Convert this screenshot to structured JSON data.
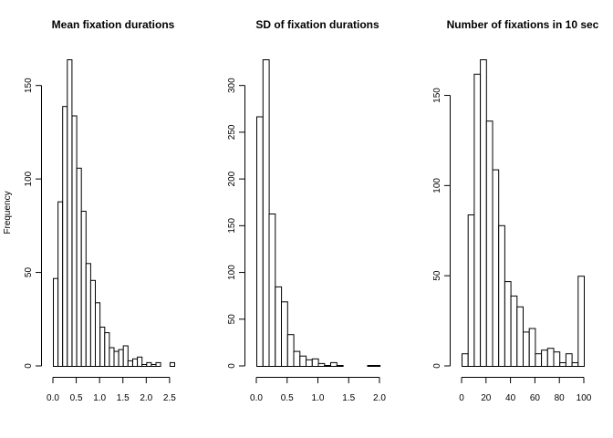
{
  "chart_data": [
    {
      "type": "bar",
      "title": "Mean fixation durations",
      "ylabel": "Frequency",
      "xlabel": "",
      "bin_width": 0.1,
      "bin_start": 0.0,
      "values": [
        47,
        88,
        139,
        164,
        134,
        106,
        83,
        55,
        46,
        34,
        21,
        18,
        10,
        8,
        9,
        11,
        3,
        4,
        5,
        1,
        2,
        1,
        2,
        0,
        0,
        2
      ],
      "xlim": [
        0,
        2.6
      ],
      "ylim": [
        0,
        164
      ],
      "xticks": [
        0.0,
        0.5,
        1.0,
        1.5,
        2.0,
        2.5
      ],
      "xtick_labels": [
        "0.0",
        "0.5",
        "1.0",
        "1.5",
        "2.0",
        "2.5"
      ],
      "yticks": [
        0,
        50,
        100,
        150
      ],
      "ytick_labels": [
        "0",
        "50",
        "100",
        "150"
      ]
    },
    {
      "type": "bar",
      "title": "SD of fixation durations",
      "ylabel": "",
      "xlabel": "",
      "bin_width": 0.1,
      "bin_start": 0.0,
      "values": [
        267,
        328,
        163,
        85,
        69,
        34,
        16,
        11,
        7,
        8,
        3,
        1,
        4,
        1,
        0,
        0,
        0,
        0,
        1,
        1
      ],
      "xlim": [
        0,
        2.0
      ],
      "ylim": [
        0,
        328
      ],
      "xticks": [
        0.0,
        0.5,
        1.0,
        1.5,
        2.0
      ],
      "xtick_labels": [
        "0.0",
        "0.5",
        "1.0",
        "1.5",
        "2.0"
      ],
      "yticks": [
        0,
        50,
        100,
        150,
        200,
        250,
        300
      ],
      "ytick_labels": [
        "0",
        "50",
        "100",
        "150",
        "200",
        "250",
        "300"
      ]
    },
    {
      "type": "bar",
      "title": "Number of fixations in 10 sec",
      "ylabel": "",
      "xlabel": "",
      "bin_width": 5,
      "bin_start": 0,
      "values": [
        7,
        84,
        162,
        170,
        136,
        109,
        78,
        47,
        39,
        33,
        19,
        21,
        7,
        9,
        10,
        8,
        2,
        7,
        2,
        50
      ],
      "xlim": [
        0,
        100
      ],
      "ylim": [
        0,
        170
      ],
      "xticks": [
        0,
        20,
        40,
        60,
        80,
        100
      ],
      "xtick_labels": [
        "0",
        "20",
        "40",
        "60",
        "80",
        "100"
      ],
      "yticks": [
        0,
        50,
        100,
        150
      ],
      "ytick_labels": [
        "0",
        "50",
        "100",
        "150"
      ]
    }
  ]
}
